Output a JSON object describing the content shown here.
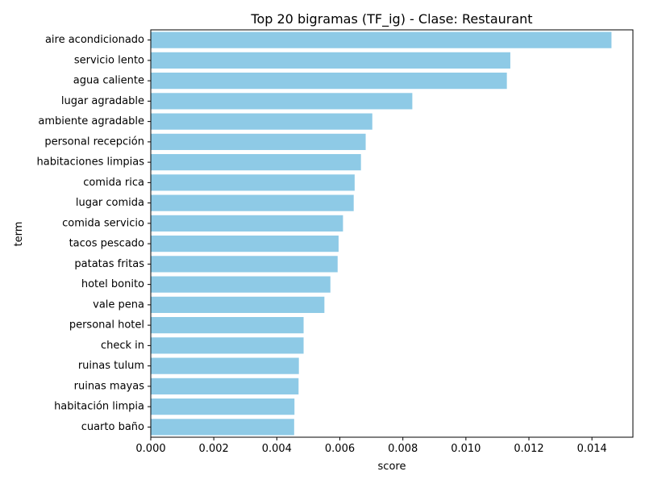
{
  "chart_data": {
    "type": "bar",
    "orientation": "horizontal",
    "title": "Top 20 bigramas (TF_ig) - Clase: Restaurant",
    "xlabel": "score",
    "ylabel": "term",
    "xlim": [
      0,
      0.0153
    ],
    "x_ticks": [
      "0.000",
      "0.002",
      "0.004",
      "0.006",
      "0.008",
      "0.010",
      "0.012",
      "0.014"
    ],
    "x_tick_values": [
      0,
      0.002,
      0.004,
      0.006,
      0.008,
      0.01,
      0.012,
      0.014
    ],
    "grid": false,
    "bar_color": "#8ecae6",
    "categories": [
      "aire acondicionado",
      "servicio lento",
      "agua caliente",
      "lugar agradable",
      "ambiente agradable",
      "personal recepción",
      "habitaciones limpias",
      "comida rica",
      "lugar comida",
      "comida servicio",
      "tacos pescado",
      "patatas fritas",
      "hotel bonito",
      "vale pena",
      "personal hotel",
      "check in",
      "ruinas tulum",
      "ruinas mayas",
      "habitación limpia",
      "cuarto baño"
    ],
    "values": [
      0.01462,
      0.01141,
      0.0113,
      0.0083,
      0.00703,
      0.00682,
      0.00667,
      0.00647,
      0.00644,
      0.0061,
      0.00596,
      0.00593,
      0.0057,
      0.00551,
      0.00485,
      0.00485,
      0.0047,
      0.00469,
      0.00456,
      0.00455
    ]
  }
}
